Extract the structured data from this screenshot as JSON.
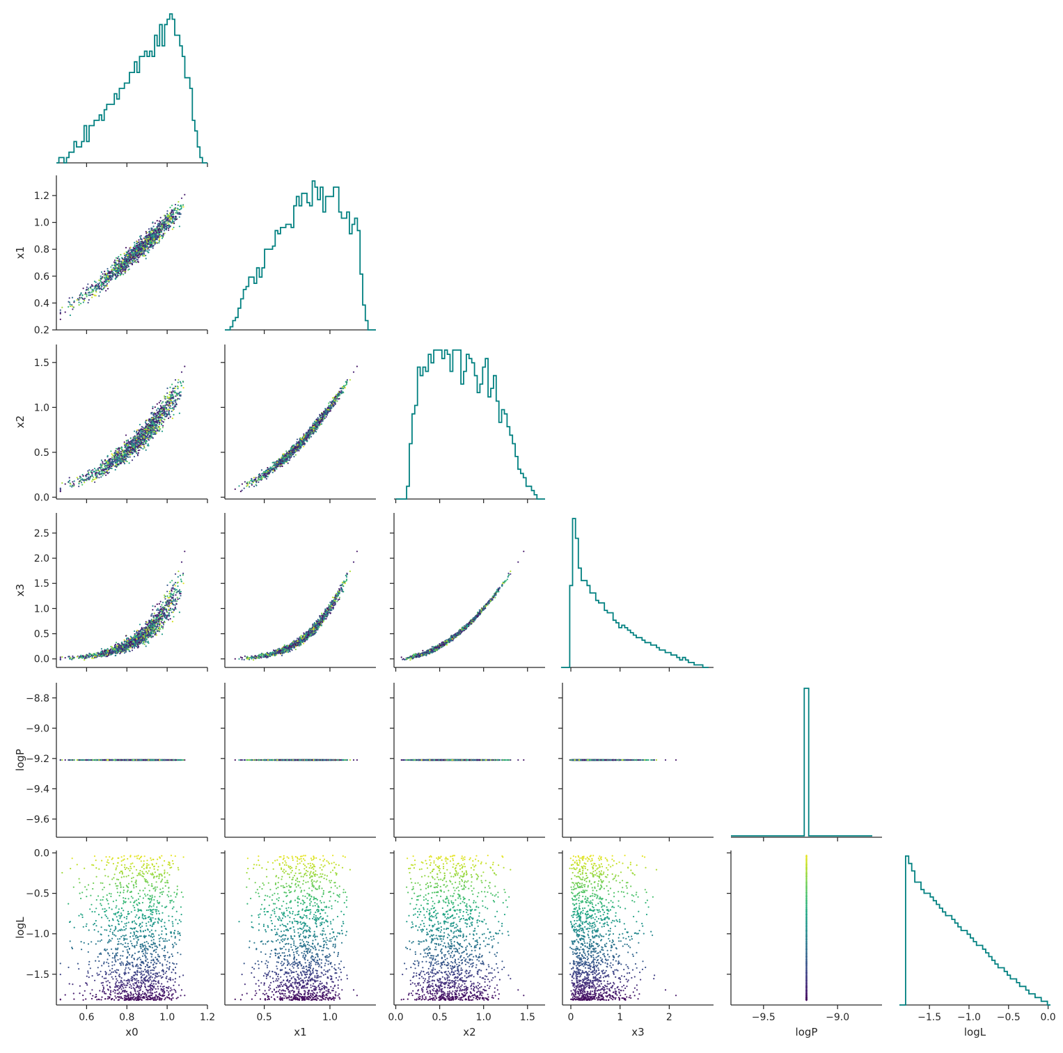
{
  "chart_data": {
    "type": "corner",
    "variables": [
      "x0",
      "x1",
      "x2",
      "x3",
      "logP",
      "logL"
    ],
    "colors": {
      "histogram": "#008080",
      "colormap": "viridis",
      "axes": "#262626"
    },
    "color_by": "logL",
    "n_samples": 1500,
    "axes": {
      "x0": {
        "range": [
          0.45,
          1.2
        ],
        "ticks": [
          0.6,
          0.8,
          1.0,
          1.2
        ],
        "tick_labels": [
          "0.6",
          "0.8",
          "1.0",
          "1.2"
        ]
      },
      "x1": {
        "range": [
          0.2,
          1.35
        ],
        "ticks": [
          0.5,
          1.0
        ],
        "tick_labels": [
          "0.5",
          "1.0"
        ],
        "y_ticks": [
          0.2,
          0.4,
          0.6,
          0.8,
          1.0,
          1.2
        ],
        "y_tick_labels": [
          "0.2",
          "0.4",
          "0.6",
          "0.8",
          "1.0",
          "1.2"
        ]
      },
      "x2": {
        "range": [
          -0.02,
          1.7
        ],
        "ticks": [
          0.0,
          0.5,
          1.0,
          1.5
        ],
        "tick_labels": [
          "0.0",
          "0.5",
          "1.0",
          "1.5"
        ]
      },
      "x3": {
        "range": [
          -0.17,
          2.9
        ],
        "ticks": [
          0,
          1,
          2
        ],
        "tick_labels": [
          "0",
          "1",
          "2"
        ],
        "y_ticks": [
          0.0,
          0.5,
          1.0,
          1.5,
          2.0,
          2.5
        ],
        "y_tick_labels": [
          "0.0",
          "0.5",
          "1.0",
          "1.5",
          "2.0",
          "2.5"
        ]
      },
      "logP": {
        "range": [
          -9.72,
          -8.7
        ],
        "ticks": [
          -9.5,
          -9.0
        ],
        "tick_labels": [
          "−9.5",
          "−9.0"
        ],
        "y_ticks": [
          -9.6,
          -9.4,
          -9.2,
          -9.0,
          -8.8
        ],
        "y_tick_labels": [
          "−9.6",
          "−9.4",
          "−9.2",
          "−9.0",
          "−8.8"
        ]
      },
      "logL": {
        "range": [
          -1.88,
          0.03
        ],
        "ticks": [
          -1.5,
          -1.0,
          -0.5,
          0.0
        ],
        "tick_labels": [
          "−1.5",
          "−1.0",
          "−0.5",
          "0.0"
        ],
        "y_ticks": [
          -1.5,
          -1.0,
          -0.5,
          0.0
        ],
        "y_tick_labels": [
          "−1.5",
          "−1.0",
          "−0.5",
          "0.0"
        ]
      }
    },
    "logP_value": -9.21,
    "relations": {
      "x1": "x1 ≈ x0^1.5",
      "x2": "x2 ≈ x1^2",
      "x3": "x3 ≈ x2^2",
      "logL": "independent of position, density decreasing toward 0"
    },
    "histograms": {
      "x0": {
        "bin_min": 0.45,
        "bin_max": 1.2,
        "counts": [
          0,
          1,
          1,
          0,
          1,
          2,
          2,
          4,
          3,
          3,
          4,
          7,
          4,
          7,
          7,
          8,
          8,
          9,
          8,
          10,
          11,
          11,
          11,
          13,
          12,
          14,
          14,
          15,
          15,
          17,
          17,
          19,
          17,
          20,
          20,
          21,
          20,
          21,
          20,
          24,
          22,
          26,
          22,
          26,
          27,
          28,
          27,
          24,
          24,
          22,
          20,
          16,
          16,
          14,
          8,
          6,
          3,
          1,
          0,
          0
        ]
      },
      "x1": {
        "bin_min": 0.2,
        "bin_max": 1.35,
        "counts": [
          0,
          0,
          1,
          3,
          4,
          7,
          10,
          13,
          14,
          17,
          17,
          15,
          20,
          17,
          20,
          26,
          26,
          26,
          27,
          32,
          31,
          33,
          33,
          34,
          34,
          33,
          40,
          43,
          40,
          44,
          44,
          41,
          40,
          48,
          46,
          42,
          46,
          38,
          43,
          43,
          43,
          46,
          46,
          38,
          36,
          36,
          38,
          31,
          34,
          36,
          32,
          18,
          8,
          3,
          0,
          0,
          0
        ]
      },
      "x2": {
        "bin_min": 0.0,
        "bin_max": 1.7,
        "counts": [
          0,
          0,
          0,
          0,
          3,
          13,
          20,
          22,
          31,
          29,
          31,
          30,
          34,
          32,
          35,
          35,
          35,
          33,
          35,
          34,
          30,
          35,
          35,
          35,
          27,
          30,
          34,
          33,
          32,
          29,
          25,
          27,
          31,
          33,
          24,
          26,
          29,
          23,
          18,
          21,
          20,
          17,
          15,
          13,
          10,
          7,
          6,
          5,
          3,
          3,
          2,
          1,
          0,
          0,
          0
        ]
      },
      "x3": {
        "bin_min": -0.2,
        "bin_max": 2.8,
        "counts": [
          0,
          0,
          0,
          33,
          60,
          52,
          40,
          35,
          35,
          33,
          30,
          30,
          27,
          26,
          26,
          23,
          22,
          22,
          19,
          18,
          16,
          17,
          16,
          15,
          14,
          13,
          12,
          12,
          11,
          10,
          10,
          9,
          9,
          8,
          7,
          7,
          6,
          6,
          5,
          5,
          4,
          3,
          4,
          3,
          2,
          2,
          1,
          1,
          1,
          0,
          0
        ]
      },
      "logP": {
        "peak_at": -9.21,
        "bin_width": 0.03
      },
      "logL": {
        "bin_min": -1.88,
        "bin_max": 0.03,
        "counts": [
          0,
          0,
          40,
          38,
          36,
          33,
          33,
          31,
          30,
          30,
          29,
          28,
          27,
          26,
          25,
          24,
          24,
          23,
          22,
          21,
          20,
          20,
          19,
          18,
          17,
          16,
          16,
          15,
          14,
          13,
          12,
          11,
          10,
          10,
          9,
          8,
          7,
          7,
          6,
          5,
          5,
          4,
          3,
          3,
          2,
          2,
          1,
          1,
          0
        ]
      }
    }
  }
}
